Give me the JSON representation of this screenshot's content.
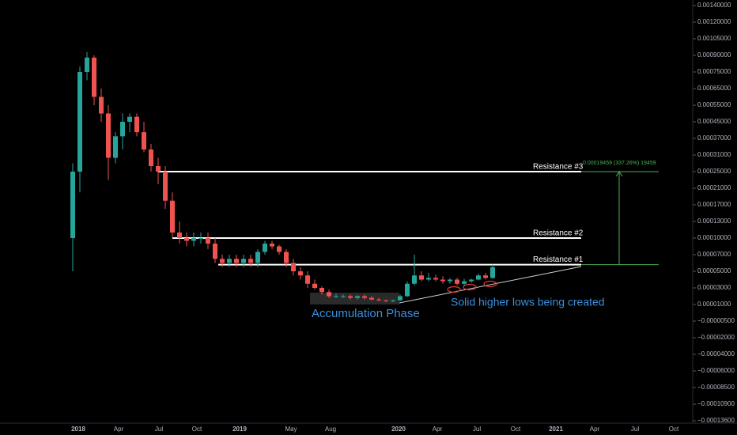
{
  "chart_data": {
    "type": "candlestick",
    "up_color": "#26a69a",
    "down_color": "#ef5350",
    "yticks": [
      {
        "value": 0.0014,
        "label": "0.00140000"
      },
      {
        "value": 0.0012,
        "label": "0.00120000"
      },
      {
        "value": 0.00105,
        "label": "0.00105000"
      },
      {
        "value": 0.0009,
        "label": "0.00090000"
      },
      {
        "value": 0.00075,
        "label": "0.00075000"
      },
      {
        "value": 0.00065,
        "label": "0.00065000"
      },
      {
        "value": 0.00055,
        "label": "0.00055000"
      },
      {
        "value": 0.00045,
        "label": "0.00045000"
      },
      {
        "value": 0.00037,
        "label": "0.00037000"
      },
      {
        "value": 0.00031,
        "label": "0.00031000"
      },
      {
        "value": 0.00025,
        "label": "0.00025000"
      },
      {
        "value": 0.00021,
        "label": "0.00021000"
      },
      {
        "value": 0.00017,
        "label": "0.00017000"
      },
      {
        "value": 0.00013,
        "label": "0.00013000"
      },
      {
        "value": 0.0001,
        "label": "0.00010000"
      },
      {
        "value": 7e-05,
        "label": "0.00007000"
      },
      {
        "value": 5e-05,
        "label": "0.00005000"
      },
      {
        "value": 3e-05,
        "label": "0.00003000"
      },
      {
        "value": 1e-05,
        "label": "0.00001000"
      },
      {
        "value": -5e-06,
        "label": "−0.00000500"
      },
      {
        "value": -2e-05,
        "label": "−0.00002000"
      },
      {
        "value": -4e-05,
        "label": "−0.00004000"
      },
      {
        "value": -6e-05,
        "label": "−0.00006000"
      },
      {
        "value": -8.5e-05,
        "label": "−0.00008500"
      },
      {
        "value": -0.000109,
        "label": "−0.00010900"
      },
      {
        "value": -0.000136,
        "label": "−0.00013600"
      }
    ],
    "x_labels": [
      "2018",
      "Apr",
      "Jul",
      "Oct",
      "2019",
      "May",
      "Aug",
      "2020",
      "Apr",
      "Jul",
      "Oct",
      "2021",
      "Apr",
      "Jul",
      "Oct"
    ],
    "open": [
      0.0001,
      0.00025,
      0.00075,
      0.00088,
      0.0006,
      0.0005,
      0.0003,
      0.00038,
      0.00045,
      0.00048,
      0.0004,
      0.00033,
      0.00027,
      0.00025,
      0.00018,
      0.00011,
      0.0001,
      9.5e-05,
      0.0001,
      0.0001,
      9e-05,
      6.5e-05,
      6e-05,
      6.5e-05,
      6e-05,
      6.5e-05,
      6e-05,
      7.5e-05,
      9e-05,
      8.5e-05,
      7.5e-05,
      6e-05,
      5e-05,
      4.5e-05,
      3.5e-05,
      3e-05,
      2.5e-05,
      2e-05,
      2e-05,
      2e-05,
      1.8e-05,
      2e-05,
      1.8e-05,
      1.6e-05,
      1.5e-05,
      1.4e-05,
      1.5e-05,
      2e-05,
      3.5e-05,
      4.5e-05,
      4e-05,
      4.2e-05,
      4e-05,
      3.8e-05,
      4e-05,
      3.5e-05,
      3.8e-05,
      4e-05,
      4.5e-05,
      4.2e-05
    ],
    "high": [
      0.00028,
      0.0008,
      0.00093,
      0.0009,
      0.00065,
      0.00055,
      0.0004,
      0.0005,
      0.0005,
      0.0005,
      0.00045,
      0.00035,
      0.0003,
      0.00027,
      0.0002,
      0.00013,
      0.00011,
      0.00011,
      0.00011,
      0.00011,
      0.0001,
      7e-05,
      7e-05,
      7e-05,
      7e-05,
      7e-05,
      8e-05,
      9.5e-05,
      9.5e-05,
      8.8e-05,
      8e-05,
      6.5e-05,
      5.5e-05,
      5e-05,
      4e-05,
      3.2e-05,
      2.8e-05,
      2.3e-05,
      2.2e-05,
      2.2e-05,
      2.1e-05,
      2.2e-05,
      2e-05,
      1.8e-05,
      1.6e-05,
      1.6e-05,
      2.2e-05,
      3.8e-05,
      7e-05,
      5e-05,
      4.8e-05,
      4.6e-05,
      4.4e-05,
      4.2e-05,
      4.2e-05,
      4.1e-05,
      4.1e-05,
      4.7e-05,
      4.8e-05,
      5.8e-05
    ],
    "low": [
      5e-05,
      0.0002,
      0.0007,
      0.00055,
      0.00045,
      0.00023,
      0.00028,
      0.00033,
      0.0004,
      0.00038,
      0.00032,
      0.00025,
      0.00022,
      0.00016,
      0.0001,
      9e-05,
      8.5e-05,
      8.5e-05,
      9e-05,
      8e-05,
      6e-05,
      5.5e-05,
      5.5e-05,
      5.5e-05,
      5.5e-05,
      5.5e-05,
      5.5e-05,
      7e-05,
      8e-05,
      7e-05,
      5.5e-05,
      4.5e-05,
      4e-05,
      3e-05,
      2.8e-05,
      2.2e-05,
      1.8e-05,
      1.8e-05,
      1.8e-05,
      1.6e-05,
      1.6e-05,
      1.6e-05,
      1.5e-05,
      1.4e-05,
      1.3e-05,
      1.3e-05,
      1.4e-05,
      1.9e-05,
      3.3e-05,
      3.8e-05,
      3.8e-05,
      3.8e-05,
      3.5e-05,
      3.5e-05,
      3.3e-05,
      3.3e-05,
      3.6e-05,
      3.9e-05,
      4e-05,
      4.1e-05
    ],
    "close": [
      0.00025,
      0.00075,
      0.00088,
      0.0006,
      0.0005,
      0.0003,
      0.00038,
      0.00045,
      0.00048,
      0.0004,
      0.00033,
      0.00027,
      0.00025,
      0.00018,
      0.00011,
      0.0001,
      9.5e-05,
      0.0001,
      0.0001,
      9e-05,
      6.5e-05,
      6e-05,
      6.5e-05,
      6e-05,
      6.5e-05,
      6e-05,
      7.5e-05,
      9e-05,
      8.5e-05,
      7.5e-05,
      6e-05,
      5e-05,
      4.5e-05,
      3.5e-05,
      3e-05,
      2.5e-05,
      2e-05,
      2e-05,
      2e-05,
      1.8e-05,
      2e-05,
      1.8e-05,
      1.6e-05,
      1.5e-05,
      1.4e-05,
      1.5e-05,
      2e-05,
      3.5e-05,
      4.5e-05,
      4e-05,
      4.2e-05,
      4e-05,
      3.8e-05,
      4e-05,
      3.5e-05,
      3.8e-05,
      4e-05,
      4.5e-05,
      4.2e-05,
      5.5e-05
    ],
    "levels": [
      {
        "label": "Resistance #3",
        "value": 0.00025
      },
      {
        "label": "Resistance #2",
        "value": 0.0001
      },
      {
        "label": "Resistance #1",
        "value": 5.8e-05
      }
    ],
    "measure_label": "0.00019459 (337.26%) 19459",
    "annotations": [
      "Accumulation Phase",
      "Solid higher lows being created"
    ]
  }
}
